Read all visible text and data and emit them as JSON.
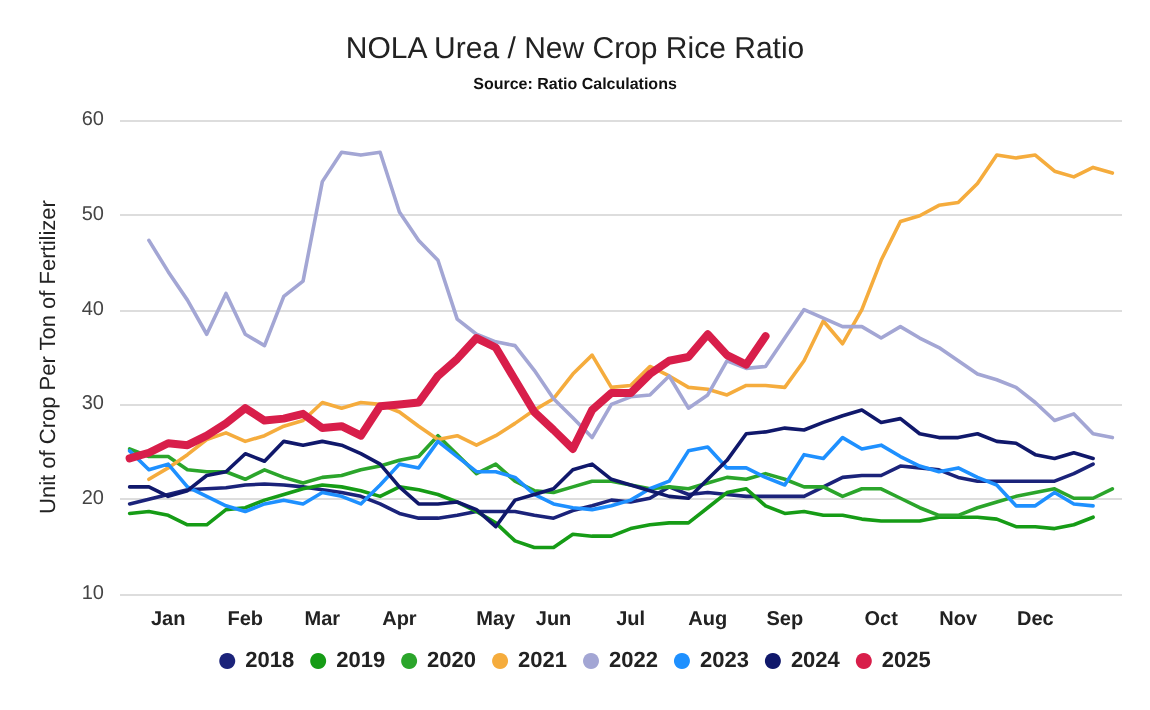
{
  "chart_data": {
    "type": "line",
    "title": "NOLA Urea / New Crop Rice Ratio",
    "subtitle": "Source: Ratio Calculations",
    "ylabel": "Unit of Crop Per Ton of Fertilizer",
    "categories": [
      null,
      null,
      "Jan",
      null,
      null,
      null,
      "Feb",
      null,
      null,
      null,
      "Mar",
      null,
      null,
      null,
      "Apr",
      null,
      null,
      null,
      null,
      "May",
      null,
      null,
      "Jun",
      null,
      null,
      null,
      "Jul",
      null,
      null,
      null,
      "Aug",
      null,
      null,
      null,
      "Sep",
      null,
      null,
      null,
      null,
      "Oct",
      null,
      null,
      null,
      "Nov",
      null,
      null,
      null,
      "Dec",
      null,
      null,
      null,
      null
    ],
    "ylim": [
      10,
      60
    ],
    "yticks": [
      10,
      20,
      30,
      40,
      50,
      60
    ],
    "grid": "y",
    "legend": "bottom",
    "series": [
      {
        "name": "2018",
        "color": "#1b237a",
        "values": [
          19.5,
          20.0,
          20.5,
          21.0,
          21.1,
          21.2,
          21.5,
          21.6,
          21.5,
          21.3,
          21.0,
          20.7,
          20.3,
          19.5,
          18.5,
          18.0,
          18.0,
          18.3,
          18.7,
          18.7,
          18.7,
          18.3,
          18.0,
          18.8,
          19.3,
          19.9,
          19.7,
          20.1,
          21.3,
          20.5,
          20.7,
          20.5,
          20.3,
          20.3,
          20.3,
          20.3,
          21.3,
          22.3,
          22.5,
          22.5,
          23.5,
          23.3,
          23.1,
          22.3,
          21.9,
          21.9,
          21.9,
          21.9,
          21.9,
          22.7,
          23.7,
          null
        ]
      },
      {
        "name": "2019",
        "color": "#169c16",
        "values": [
          18.5,
          18.7,
          18.3,
          17.3,
          17.3,
          18.9,
          19.1,
          19.9,
          20.5,
          21.1,
          21.5,
          21.3,
          20.9,
          20.3,
          21.3,
          21.0,
          20.5,
          19.7,
          18.7,
          17.5,
          15.6,
          14.9,
          14.9,
          16.3,
          16.1,
          16.1,
          16.9,
          17.3,
          17.5,
          17.5,
          19.1,
          20.7,
          21.1,
          19.3,
          18.5,
          18.7,
          18.3,
          18.3,
          17.9,
          17.7,
          17.7,
          17.7,
          18.1,
          18.1,
          18.1,
          17.9,
          17.1,
          17.1,
          16.9,
          17.3,
          18.1,
          null
        ]
      },
      {
        "name": "2020",
        "color": "#2ba52b",
        "values": [
          25.3,
          24.5,
          24.5,
          23.1,
          22.9,
          22.9,
          22.1,
          23.1,
          22.3,
          21.7,
          22.3,
          22.5,
          23.1,
          23.5,
          24.1,
          24.5,
          26.7,
          24.7,
          22.7,
          23.7,
          21.9,
          20.9,
          20.7,
          21.3,
          21.9,
          21.9,
          21.5,
          21.1,
          21.3,
          21.1,
          21.7,
          22.3,
          22.1,
          22.7,
          22.1,
          21.3,
          21.3,
          20.3,
          21.1,
          21.1,
          20.1,
          19.1,
          18.3,
          18.3,
          19.1,
          19.7,
          20.3,
          20.7,
          21.1,
          20.1,
          20.1,
          21.1
        ]
      },
      {
        "name": "2021",
        "color": "#f5ac3d",
        "values": [
          null,
          22.1,
          23.3,
          24.7,
          26.3,
          27.0,
          26.1,
          26.7,
          27.7,
          28.3,
          30.2,
          29.6,
          30.2,
          30.0,
          29.2,
          27.7,
          26.3,
          26.7,
          25.7,
          26.7,
          28.0,
          29.4,
          30.6,
          33.2,
          35.2,
          31.8,
          32.0,
          34.0,
          33.0,
          31.8,
          31.6,
          31.0,
          32.0,
          32.0,
          31.8,
          34.6,
          38.8,
          36.4,
          40.0,
          45.2,
          49.3,
          49.9,
          51.0,
          51.3,
          53.3,
          56.3,
          56.0,
          56.3,
          54.6,
          54.0,
          55.0,
          54.4
        ]
      },
      {
        "name": "2022",
        "color": "#a3a6d4",
        "values": [
          null,
          47.3,
          44.0,
          41.0,
          37.4,
          41.7,
          37.4,
          36.2,
          41.4,
          43.0,
          53.5,
          56.6,
          56.3,
          56.6,
          50.3,
          47.3,
          45.2,
          39.0,
          37.4,
          36.6,
          36.2,
          33.6,
          30.6,
          28.6,
          26.5,
          30.0,
          30.8,
          31.0,
          33.0,
          29.6,
          31.0,
          34.6,
          33.8,
          34.0,
          37.0,
          40.0,
          39.1,
          38.2,
          38.2,
          37.0,
          38.2,
          37.0,
          36.0,
          34.6,
          33.2,
          32.6,
          31.8,
          30.2,
          28.3,
          29.0,
          26.9,
          26.5
        ]
      },
      {
        "name": "2023",
        "color": "#1e90ff",
        "values": [
          25.1,
          23.1,
          23.7,
          21.3,
          20.3,
          19.3,
          18.7,
          19.5,
          19.9,
          19.5,
          20.7,
          20.3,
          19.5,
          21.5,
          23.7,
          23.3,
          26.1,
          24.5,
          22.9,
          22.9,
          22.3,
          20.5,
          19.5,
          19.1,
          18.9,
          19.3,
          19.9,
          21.1,
          21.9,
          25.1,
          25.5,
          23.3,
          23.3,
          22.3,
          21.5,
          24.7,
          24.3,
          26.5,
          25.3,
          25.7,
          24.5,
          23.5,
          22.9,
          23.3,
          22.3,
          21.5,
          19.3,
          19.3,
          20.7,
          19.5,
          19.3,
          null
        ]
      },
      {
        "name": "2024",
        "color": "#10186b",
        "values": [
          21.3,
          21.3,
          20.3,
          20.9,
          22.5,
          22.9,
          24.8,
          24.0,
          26.1,
          25.7,
          26.1,
          25.7,
          24.8,
          23.7,
          21.3,
          19.5,
          19.5,
          19.7,
          18.9,
          17.1,
          19.9,
          20.5,
          21.1,
          23.1,
          23.7,
          22.1,
          21.5,
          20.9,
          20.3,
          20.1,
          22.1,
          24.1,
          26.9,
          27.1,
          27.5,
          27.3,
          28.1,
          28.8,
          29.4,
          28.1,
          28.5,
          26.9,
          26.5,
          26.5,
          26.9,
          26.1,
          25.9,
          24.7,
          24.3,
          24.9,
          24.3,
          null
        ]
      },
      {
        "name": "2025",
        "color": "#d81e4a",
        "values": [
          24.3,
          24.9,
          25.9,
          25.7,
          26.7,
          28.0,
          29.6,
          28.3,
          28.5,
          29.0,
          27.5,
          27.7,
          26.7,
          29.8,
          30.0,
          30.2,
          33.0,
          34.8,
          37.0,
          36.0,
          32.6,
          29.2,
          27.3,
          25.3,
          29.4,
          31.2,
          31.2,
          33.2,
          34.6,
          35.0,
          37.4,
          35.2,
          34.2,
          37.2,
          null,
          null,
          null,
          null,
          null,
          null,
          null,
          null,
          null,
          null,
          null,
          null,
          null,
          null,
          null,
          null,
          null,
          null
        ]
      }
    ]
  }
}
